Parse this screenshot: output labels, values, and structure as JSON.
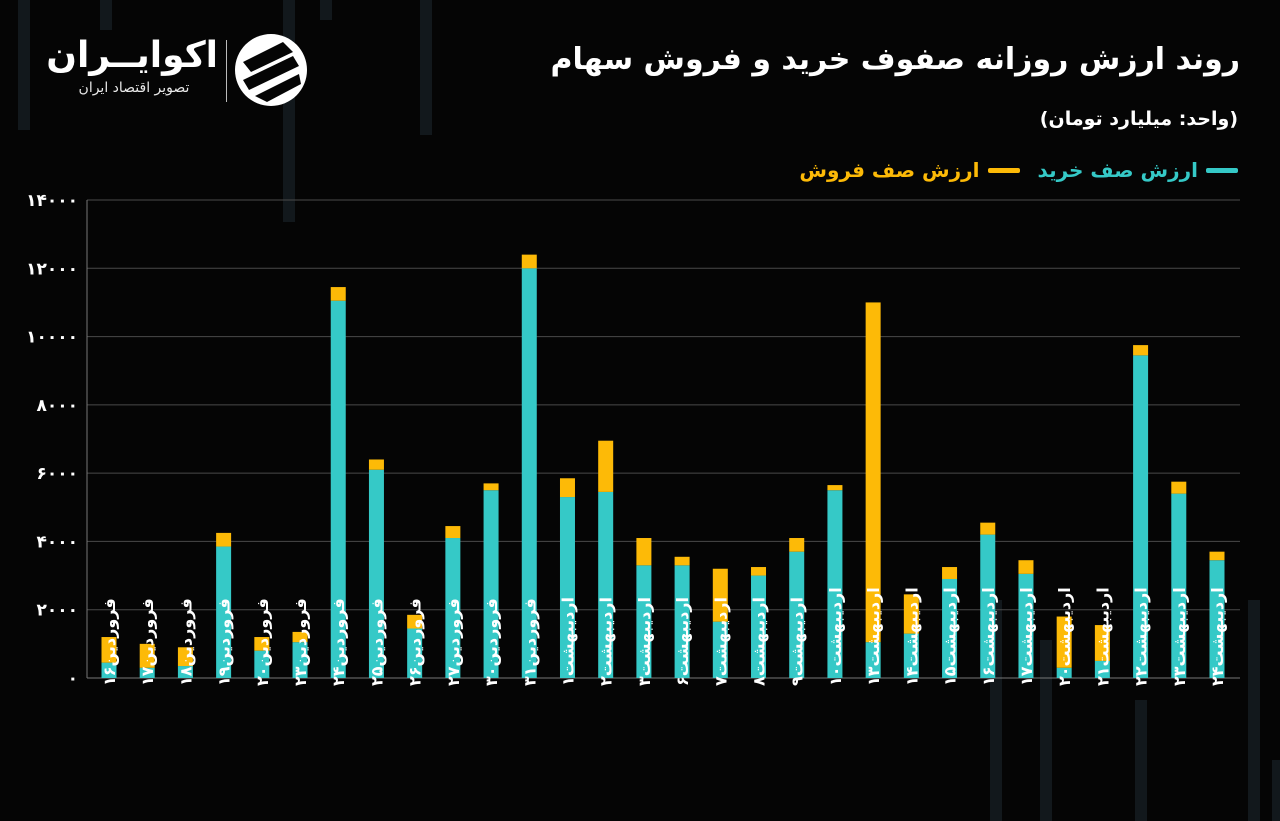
{
  "header": {
    "title": "روند ارزش روزانه صفوف خرید و فروش سهام",
    "unit": "(واحد: میلیارد تومان)"
  },
  "logo": {
    "name": "اکوایــران",
    "tagline": "تصویر اقتصاد ایران"
  },
  "legend": {
    "buy_label": "ارزش صف خرید",
    "sell_label": "ارزش صف فروش"
  },
  "colors": {
    "buy": "#35C9C7",
    "sell": "#FDBA07",
    "background": "#050505",
    "grid": "#4a4a4a"
  },
  "chart_data": {
    "type": "bar",
    "stacked": true,
    "ylim": [
      0,
      14000
    ],
    "yticks": [
      0,
      2000,
      4000,
      6000,
      8000,
      10000,
      12000,
      14000
    ],
    "ytick_labels": [
      "۰",
      "۲۰۰۰",
      "۴۰۰۰",
      "۶۰۰۰",
      "۸۰۰۰",
      "۱۰۰۰۰",
      "۱۲۰۰۰",
      "۱۴۰۰۰"
    ],
    "grid": true,
    "legend_position": "top-right",
    "categories": [
      "فروردین۱۶",
      "فروردین۱۷",
      "فروردین۱۸",
      "فروردین۱۹",
      "فروردین۲۰",
      "فروردین۲۳",
      "فروردین۲۴",
      "فروردین۲۵",
      "فروردین۲۶",
      "فروردین۲۷",
      "فروردین۳۰",
      "فروردین۳۱",
      "اردیبهشت۱",
      "اردیبهشت۲",
      "اردیبهشت۳",
      "اردیبهشت۶",
      "اردیبهشت۷",
      "اردیبهشت۸",
      "اردیبهشت۹",
      "اردیبهشت۱۰",
      "اردیبهشت۱۳",
      "اردیبهشت۱۴",
      "اردیبهشت۱۵",
      "اردیبهشت۱۶",
      "اردیبهشت۱۷",
      "اردیبهشت۲۰",
      "اردیبهشت۲۱",
      "اردیبهشت۲۲",
      "اردیبهشت۲۳",
      "اردیبهشت۲۴"
    ],
    "series": [
      {
        "name": "ارزش صف خرید",
        "values": [
          450,
          300,
          350,
          3850,
          800,
          1050,
          11050,
          6100,
          1450,
          4100,
          5500,
          12000,
          5300,
          5450,
          3300,
          3300,
          1650,
          3000,
          3700,
          5500,
          1050,
          1300,
          2900,
          4200,
          3050,
          300,
          500,
          9450,
          5400,
          3450
        ]
      },
      {
        "name": "ارزش صف فروش",
        "values": [
          750,
          700,
          550,
          400,
          400,
          300,
          400,
          300,
          400,
          350,
          200,
          400,
          550,
          1500,
          800,
          250,
          1550,
          250,
          400,
          150,
          9950,
          1150,
          350,
          350,
          400,
          1500,
          1050,
          300,
          350,
          250
        ]
      }
    ]
  }
}
